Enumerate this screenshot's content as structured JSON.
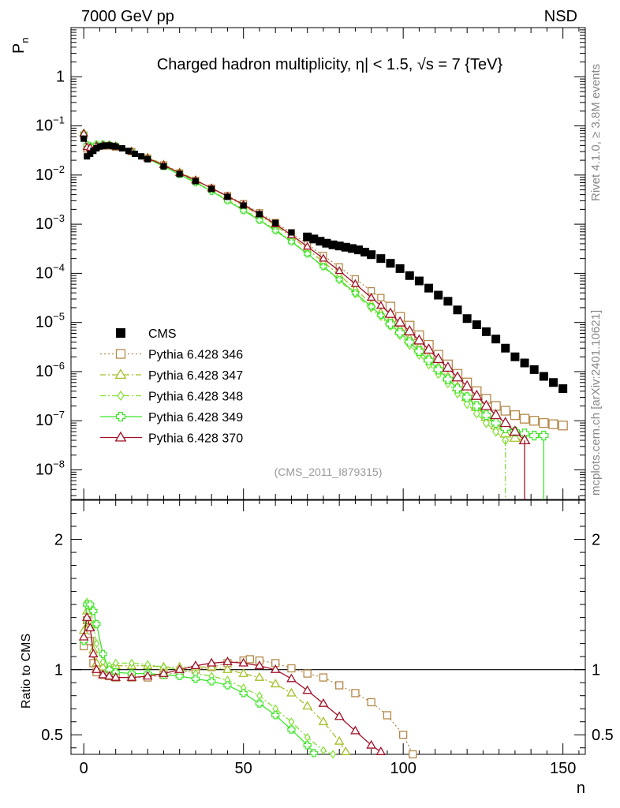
{
  "header": {
    "left": "7000 GeV pp",
    "right": "NSD"
  },
  "title": "Charged hadron multiplicity, η| < 1.5, √s = 7 {TeV}",
  "side_labels": {
    "top": "Rivet 4.1.0, ≥ 3.8M events",
    "bottom": "mcplots.cern.ch [arXiv:2401.10621]"
  },
  "analysis_id": "(CMS_2011_I879315)",
  "colors": {
    "cms": "#000000",
    "p346": "#b5894a",
    "p347": "#a5be28",
    "p348": "#80e030",
    "p349": "#3ce628",
    "p370": "#a01028"
  },
  "chart_data": [
    {
      "type": "scatter",
      "panel": "main",
      "ylabel": "P",
      "ylabel_sub": "n",
      "yscale": "log",
      "xlim": [
        -4,
        157
      ],
      "ylim": [
        2.5e-09,
        10
      ],
      "y_ticks": [
        {
          "value": 1,
          "label": "1"
        },
        {
          "value": 0.1,
          "label": "10",
          "exp": "−1"
        },
        {
          "value": 0.01,
          "label": "10",
          "exp": "−2"
        },
        {
          "value": 0.001,
          "label": "10",
          "exp": "−3"
        },
        {
          "value": 0.0001,
          "label": "10",
          "exp": "−4"
        },
        {
          "value": 1e-05,
          "label": "10",
          "exp": "−5"
        },
        {
          "value": 1e-06,
          "label": "10",
          "exp": "−6"
        },
        {
          "value": 1e-07,
          "label": "10",
          "exp": "−7"
        },
        {
          "value": 1e-08,
          "label": "10",
          "exp": "−8"
        }
      ],
      "cms": {
        "name": "CMS",
        "x": [
          0,
          1,
          2,
          3,
          4,
          5,
          6,
          7,
          8,
          9,
          10,
          12,
          14,
          16,
          18,
          20,
          25,
          30,
          35,
          40,
          45,
          50,
          55,
          60,
          65,
          70,
          72,
          74,
          76,
          78,
          80,
          82,
          84,
          86,
          88,
          90,
          93,
          96,
          99,
          102,
          105,
          108,
          111,
          114,
          117,
          120,
          123,
          126,
          129,
          132,
          135,
          138,
          141,
          144,
          147,
          150
        ],
        "y": [
          0.055,
          0.024,
          0.027,
          0.031,
          0.035,
          0.038,
          0.039,
          0.04,
          0.04,
          0.039,
          0.038,
          0.035,
          0.031,
          0.027,
          0.024,
          0.021,
          0.015,
          0.0105,
          0.0075,
          0.0052,
          0.0036,
          0.0024,
          0.0016,
          0.00106,
          0.00068,
          0.00055,
          0.0005,
          0.00045,
          0.00041,
          0.00038,
          0.00036,
          0.00034,
          0.00032,
          0.0003,
          0.00027,
          0.00024,
          0.0002,
          0.00016,
          0.000125,
          9e-05,
          7e-05,
          5e-05,
          3.6e-05,
          2.7e-05,
          1.8e-05,
          1.2e-05,
          9e-06,
          6.5e-06,
          4.6e-06,
          3e-06,
          2e-06,
          1.5e-06,
          1.1e-06,
          8e-07,
          6e-07,
          4.5e-07
        ]
      },
      "series": [
        {
          "name": "Pythia 6.428 346",
          "marker": "square-open",
          "dash": "dotted",
          "color": "#b5894a",
          "x": [
            0,
            1,
            2,
            4,
            6,
            8,
            10,
            15,
            20,
            25,
            30,
            35,
            40,
            45,
            50,
            55,
            60,
            65,
            70,
            75,
            80,
            85,
            90,
            93,
            96,
            99,
            102,
            105,
            108,
            111,
            114,
            117,
            120,
            123,
            126,
            129,
            132,
            135,
            138,
            141,
            144,
            147,
            150
          ],
          "y": [
            0.065,
            0.034,
            0.035,
            0.038,
            0.039,
            0.039,
            0.037,
            0.03,
            0.022,
            0.016,
            0.011,
            0.0078,
            0.0054,
            0.0038,
            0.0026,
            0.0017,
            0.00108,
            0.00066,
            0.00039,
            0.00023,
            0.000135,
            7.7e-05,
            4.4e-05,
            3.2e-05,
            2.1e-05,
            1.3e-05,
            8.6e-06,
            5.5e-06,
            3.5e-06,
            2.2e-06,
            1.4e-06,
            9e-07,
            6e-07,
            4e-07,
            2.8e-07,
            2e-07,
            1.6e-07,
            1.3e-07,
            1.1e-07,
            1e-07,
            9e-08,
            8.5e-08,
            8e-08
          ]
        },
        {
          "name": "Pythia 6.428 347",
          "marker": "triangle-open",
          "dash": "dashdot",
          "color": "#a5be28",
          "x": [
            0,
            1,
            2,
            4,
            6,
            8,
            10,
            15,
            20,
            25,
            30,
            35,
            40,
            45,
            50,
            55,
            60,
            65,
            70,
            75,
            80,
            85,
            90,
            93,
            96,
            99,
            102,
            105,
            108,
            111,
            114,
            117,
            120,
            123,
            126,
            129,
            132,
            135,
            138
          ],
          "y": [
            0.072,
            0.04,
            0.038,
            0.041,
            0.042,
            0.041,
            0.039,
            0.031,
            0.023,
            0.0165,
            0.0115,
            0.008,
            0.0054,
            0.0036,
            0.0024,
            0.0015,
            0.00094,
            0.00056,
            0.00031,
            0.00017,
            9.2e-05,
            4.8e-05,
            2.4e-05,
            1.6e-05,
            1.1e-05,
            7.2e-06,
            4.6e-06,
            3e-06,
            1.9e-06,
            1.2e-06,
            7.6e-07,
            4.8e-07,
            3e-07,
            1.9e-07,
            1.2e-07,
            8e-08,
            5.5e-08,
            4.5e-08,
            4e-08
          ]
        },
        {
          "name": "Pythia 6.428 348",
          "marker": "diamond-open",
          "dash": "dashdot",
          "color": "#80e030",
          "x": [
            0,
            1,
            2,
            4,
            6,
            8,
            10,
            15,
            20,
            25,
            30,
            35,
            40,
            45,
            50,
            55,
            60,
            65,
            70,
            75,
            80,
            85,
            90,
            93,
            96,
            99,
            102,
            105,
            108,
            111,
            114,
            117,
            120,
            123,
            126,
            129,
            132
          ],
          "y": [
            0.07,
            0.042,
            0.04,
            0.043,
            0.043,
            0.042,
            0.04,
            0.031,
            0.022,
            0.0155,
            0.0105,
            0.0072,
            0.0048,
            0.0031,
            0.002,
            0.00125,
            0.00077,
            0.00045,
            0.00025,
            0.000135,
            7.2e-05,
            3.7e-05,
            1.9e-05,
            1.28e-05,
            8.5e-06,
            5.5e-06,
            3.5e-06,
            2.2e-06,
            1.4e-06,
            9e-07,
            5.8e-07,
            3.6e-07,
            2.2e-07,
            1.4e-07,
            9e-08,
            6e-08,
            4e-08
          ]
        },
        {
          "name": "Pythia 6.428 349",
          "marker": "cross",
          "dash": "solid",
          "color": "#3ce628",
          "x": [
            0,
            1,
            2,
            4,
            6,
            8,
            10,
            15,
            20,
            25,
            30,
            35,
            40,
            45,
            50,
            55,
            60,
            65,
            70,
            75,
            80,
            85,
            90,
            93,
            96,
            99,
            102,
            105,
            108,
            111,
            114,
            117,
            120,
            123,
            126,
            129,
            132,
            135,
            138,
            141,
            144
          ],
          "y": [
            0.068,
            0.041,
            0.039,
            0.042,
            0.042,
            0.041,
            0.039,
            0.03,
            0.0215,
            0.015,
            0.0102,
            0.007,
            0.0047,
            0.003,
            0.0019,
            0.0012,
            0.00074,
            0.00044,
            0.00025,
            0.000138,
            7.5e-05,
            4e-05,
            2.1e-05,
            1.4e-05,
            9.3e-06,
            6.2e-06,
            4e-06,
            2.6e-06,
            1.7e-06,
            1.1e-06,
            7e-07,
            4.5e-07,
            3e-07,
            2e-07,
            1.3e-07,
            9e-08,
            7e-08,
            6e-08,
            5.5e-08,
            5e-08,
            5e-08
          ]
        },
        {
          "name": "Pythia 6.428 370",
          "marker": "triangle-open",
          "dash": "solid",
          "color": "#a01028",
          "x": [
            0,
            1,
            2,
            4,
            6,
            8,
            10,
            15,
            20,
            25,
            30,
            35,
            40,
            45,
            50,
            55,
            60,
            65,
            70,
            75,
            80,
            85,
            90,
            93,
            96,
            99,
            102,
            105,
            108,
            111,
            114,
            117,
            120,
            123,
            126,
            129,
            132,
            135,
            138
          ],
          "y": [
            0.07,
            0.037,
            0.036,
            0.039,
            0.04,
            0.04,
            0.038,
            0.03,
            0.022,
            0.016,
            0.011,
            0.0078,
            0.0054,
            0.0037,
            0.0025,
            0.0016,
            0.001,
            0.0006,
            0.00035,
            0.0002,
            0.000112,
            6.1e-05,
            3.2e-05,
            2.2e-05,
            1.5e-05,
            1e-05,
            6.6e-06,
            4.3e-06,
            2.8e-06,
            1.8e-06,
            1.2e-06,
            7.6e-07,
            5e-07,
            3.2e-07,
            2e-07,
            1.3e-07,
            9e-08,
            6e-08,
            4e-08
          ]
        }
      ]
    },
    {
      "type": "line",
      "panel": "ratio",
      "ylabel": "Ratio to CMS",
      "xlabel": "n",
      "xlim": [
        -4,
        157
      ],
      "ylim": [
        0.35,
        2.3
      ],
      "y_ticks": [
        {
          "value": 2,
          "label": "2"
        },
        {
          "value": 1,
          "label": "1"
        },
        {
          "value": 0.5,
          "label": "0.5"
        }
      ],
      "x_ticks": [
        {
          "value": 0,
          "label": "0"
        },
        {
          "value": 50,
          "label": "50"
        },
        {
          "value": 100,
          "label": "100"
        },
        {
          "value": 150,
          "label": "150"
        }
      ],
      "reference_line": 1.0,
      "series": [
        {
          "name": "Pythia 6.428 346",
          "x": [
            0,
            1,
            2,
            3,
            4,
            6,
            8,
            10,
            15,
            20,
            25,
            30,
            35,
            40,
            45,
            50,
            52,
            55,
            60,
            65,
            70,
            75,
            80,
            85,
            90,
            95,
            100,
            103
          ],
          "y": [
            1.18,
            1.38,
            1.22,
            1.05,
            0.98,
            0.96,
            0.95,
            0.94,
            0.94,
            0.94,
            0.96,
            0.98,
            1.0,
            1.02,
            1.05,
            1.07,
            1.08,
            1.07,
            1.05,
            1.01,
            0.97,
            0.94,
            0.88,
            0.82,
            0.75,
            0.65,
            0.5,
            0.35
          ]
        },
        {
          "name": "Pythia 6.428 347",
          "x": [
            0,
            1,
            2,
            3,
            4,
            6,
            8,
            10,
            15,
            20,
            25,
            30,
            35,
            40,
            45,
            50,
            55,
            60,
            65,
            70,
            75,
            80,
            82
          ],
          "y": [
            1.3,
            1.45,
            1.35,
            1.15,
            1.05,
            1.02,
            1.02,
            1.03,
            1.03,
            1.03,
            1.02,
            1.02,
            1.02,
            1.02,
            1.0,
            0.97,
            0.94,
            0.89,
            0.82,
            0.72,
            0.6,
            0.45,
            0.37
          ]
        },
        {
          "name": "Pythia 6.428 348",
          "x": [
            0,
            1,
            2,
            3,
            4,
            6,
            8,
            10,
            15,
            20,
            25,
            30,
            35,
            40,
            45,
            50,
            55,
            60,
            65,
            70,
            75,
            78
          ],
          "y": [
            1.25,
            1.52,
            1.48,
            1.35,
            1.2,
            1.06,
            1.03,
            1.05,
            1.05,
            1.04,
            1.02,
            1.0,
            0.97,
            0.95,
            0.92,
            0.86,
            0.8,
            0.7,
            0.6,
            0.48,
            0.38,
            0.35
          ]
        },
        {
          "name": "Pythia 6.428 349",
          "x": [
            0,
            1,
            2,
            3,
            4,
            6,
            8,
            10,
            15,
            20,
            25,
            30,
            35,
            40,
            45,
            50,
            55,
            60,
            65,
            70,
            72
          ],
          "y": [
            1.22,
            1.5,
            1.5,
            1.45,
            1.35,
            1.12,
            1.0,
            0.98,
            0.97,
            0.97,
            0.96,
            0.95,
            0.93,
            0.91,
            0.88,
            0.82,
            0.74,
            0.65,
            0.54,
            0.42,
            0.36
          ]
        },
        {
          "name": "Pythia 6.428 370",
          "x": [
            0,
            1,
            2,
            3,
            4,
            6,
            8,
            10,
            15,
            20,
            25,
            30,
            35,
            40,
            45,
            50,
            55,
            60,
            65,
            70,
            75,
            80,
            85,
            90,
            93
          ],
          "y": [
            1.25,
            1.4,
            1.32,
            1.12,
            1.0,
            0.96,
            0.95,
            0.94,
            0.94,
            0.95,
            0.97,
            1.0,
            1.03,
            1.05,
            1.06,
            1.05,
            1.03,
            1.0,
            0.93,
            0.84,
            0.74,
            0.64,
            0.53,
            0.42,
            0.37
          ]
        }
      ]
    }
  ]
}
